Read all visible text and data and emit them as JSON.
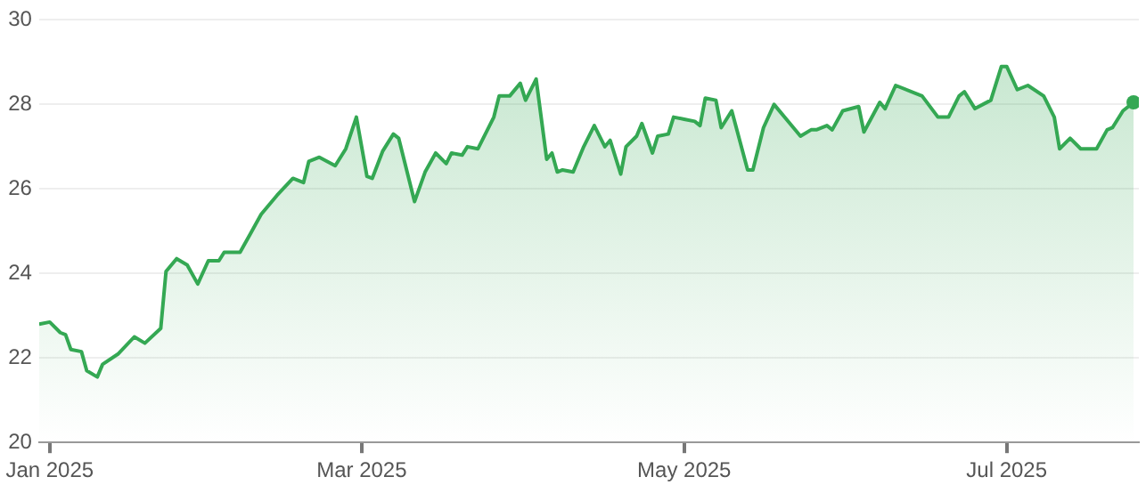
{
  "chart_data": {
    "type": "area",
    "color": "#34a853",
    "grid": "y",
    "xlim": [
      "2024-12-30",
      "2025-07-26"
    ],
    "xticks": [
      {
        "value": "2025-01-01",
        "label": "Jan 2025"
      },
      {
        "value": "2025-03-01",
        "label": "Mar 2025"
      },
      {
        "value": "2025-05-01",
        "label": "May 2025"
      },
      {
        "value": "2025-07-01",
        "label": "Jul 2025"
      }
    ],
    "ylim": [
      20,
      30
    ],
    "yticks": [
      20,
      22,
      24,
      26,
      28,
      30
    ],
    "x": [
      "2024-12-30",
      "2025-01-01",
      "2025-01-03",
      "2025-01-04",
      "2025-01-05",
      "2025-01-07",
      "2025-01-08",
      "2025-01-10",
      "2025-01-11",
      "2025-01-14",
      "2025-01-17",
      "2025-01-19",
      "2025-01-22",
      "2025-01-23",
      "2025-01-25",
      "2025-01-27",
      "2025-01-29",
      "2025-01-31",
      "2025-02-02",
      "2025-02-03",
      "2025-02-06",
      "2025-02-08",
      "2025-02-10",
      "2025-02-13",
      "2025-02-16",
      "2025-02-18",
      "2025-02-19",
      "2025-02-21",
      "2025-02-24",
      "2025-02-26",
      "2025-02-28",
      "2025-03-02",
      "2025-03-03",
      "2025-03-05",
      "2025-03-07",
      "2025-03-08",
      "2025-03-10",
      "2025-03-11",
      "2025-03-13",
      "2025-03-15",
      "2025-03-17",
      "2025-03-18",
      "2025-03-20",
      "2025-03-21",
      "2025-03-23",
      "2025-03-26",
      "2025-03-27",
      "2025-03-29",
      "2025-03-31",
      "2025-04-01",
      "2025-04-03",
      "2025-04-05",
      "2025-04-06",
      "2025-04-07",
      "2025-04-08",
      "2025-04-10",
      "2025-04-12",
      "2025-04-14",
      "2025-04-16",
      "2025-04-17",
      "2025-04-19",
      "2025-04-20",
      "2025-04-22",
      "2025-04-23",
      "2025-04-25",
      "2025-04-26",
      "2025-04-28",
      "2025-04-29",
      "2025-05-01",
      "2025-05-03",
      "2025-05-04",
      "2025-05-05",
      "2025-05-07",
      "2025-05-08",
      "2025-05-10",
      "2025-05-13",
      "2025-05-14",
      "2025-05-16",
      "2025-05-18",
      "2025-05-21",
      "2025-05-23",
      "2025-05-25",
      "2025-05-26",
      "2025-05-28",
      "2025-05-29",
      "2025-05-31",
      "2025-06-03",
      "2025-06-04",
      "2025-06-07",
      "2025-06-08",
      "2025-06-10",
      "2025-06-15",
      "2025-06-18",
      "2025-06-20",
      "2025-06-22",
      "2025-06-23",
      "2025-06-25",
      "2025-06-28",
      "2025-06-30",
      "2025-07-01",
      "2025-07-03",
      "2025-07-05",
      "2025-07-08",
      "2025-07-10",
      "2025-07-11",
      "2025-07-13",
      "2025-07-15",
      "2025-07-18",
      "2025-07-20",
      "2025-07-21",
      "2025-07-23",
      "2025-07-25"
    ],
    "values": [
      22.8,
      22.85,
      22.6,
      22.55,
      22.2,
      22.15,
      21.7,
      21.55,
      21.85,
      22.1,
      22.5,
      22.35,
      22.7,
      24.05,
      24.35,
      24.2,
      23.75,
      24.3,
      24.3,
      24.5,
      24.5,
      24.95,
      25.4,
      25.85,
      26.25,
      26.15,
      26.65,
      26.75,
      26.55,
      26.95,
      27.7,
      26.3,
      26.25,
      26.9,
      27.3,
      27.2,
      26.2,
      25.7,
      26.4,
      26.85,
      26.6,
      26.85,
      26.8,
      27.0,
      26.95,
      27.7,
      28.2,
      28.2,
      28.5,
      28.1,
      28.6,
      26.7,
      26.85,
      26.4,
      26.45,
      26.4,
      27.0,
      27.5,
      27.0,
      27.15,
      26.35,
      27.0,
      27.25,
      27.55,
      26.85,
      27.25,
      27.3,
      27.7,
      27.65,
      27.6,
      27.5,
      28.15,
      28.1,
      27.45,
      27.85,
      26.45,
      26.45,
      27.45,
      28.0,
      27.55,
      27.25,
      27.4,
      27.4,
      27.5,
      27.4,
      27.85,
      27.95,
      27.35,
      28.05,
      27.9,
      28.45,
      28.2,
      27.7,
      27.7,
      28.2,
      28.3,
      27.9,
      28.1,
      28.9,
      28.9,
      28.35,
      28.45,
      28.2,
      27.7,
      26.95,
      27.2,
      26.95,
      26.95,
      27.4,
      27.45,
      27.85,
      28.05
    ]
  }
}
